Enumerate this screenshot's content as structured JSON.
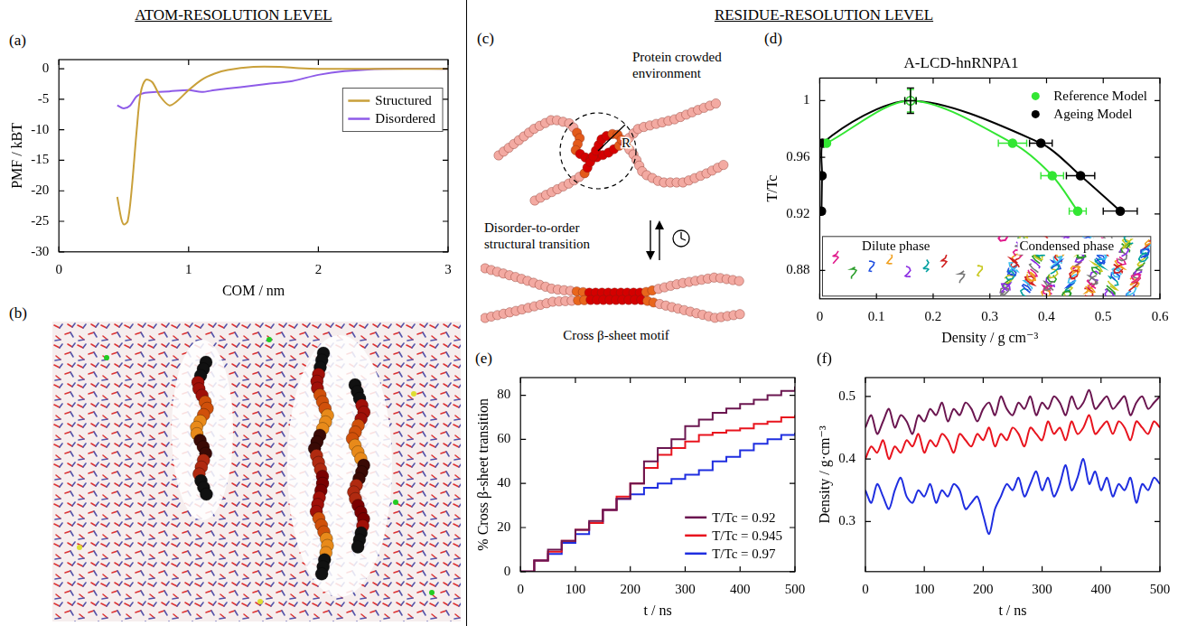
{
  "headers": {
    "left": "ATOM-RESOLUTION LEVEL",
    "right": "RESIDUE-RESOLUTION LEVEL"
  },
  "panel_b": {
    "panel": "(b)"
  },
  "diagram_c": {
    "panel": "(c)",
    "environment_label": "Protein crowded environment",
    "radius_label": "R",
    "transition_label": "Disorder-to-order structural transition",
    "motif_label": "Cross β-sheet motif"
  },
  "chart_data": [
    {
      "panel": "(a)",
      "type": "line",
      "x_label": "COM / nm",
      "y_label": "PMF / kBT",
      "xlim": [
        0,
        3
      ],
      "xticks": [
        0,
        1,
        2,
        3
      ],
      "ylim": [
        -30,
        1.5
      ],
      "yticks": [
        -30,
        -25,
        -20,
        -15,
        -10,
        -5,
        0
      ],
      "grid": false,
      "legend": "top-right",
      "series": [
        {
          "name": "Structured",
          "color": "#c9a03a",
          "line_style": "solid",
          "x": [
            0.45,
            0.48,
            0.5,
            0.53,
            0.56,
            0.6,
            0.63,
            0.67,
            0.72,
            0.78,
            0.85,
            0.9,
            1.0,
            1.1,
            1.2,
            1.3,
            1.5,
            1.7,
            1.85,
            2.0,
            2.5,
            3.0
          ],
          "values": [
            -21,
            -24.5,
            -25.5,
            -25,
            -20,
            -10,
            -4,
            -1.8,
            -2.2,
            -4.5,
            -6,
            -5.5,
            -3.5,
            -1.8,
            -0.8,
            -0.2,
            0.3,
            0.3,
            0.1,
            0,
            0,
            0
          ]
        },
        {
          "name": "Disordered",
          "color": "#8e5be8",
          "line_style": "solid",
          "x": [
            0.45,
            0.5,
            0.55,
            0.6,
            0.65,
            0.75,
            0.85,
            1.0,
            1.1,
            1.2,
            1.4,
            1.6,
            1.8,
            2.0,
            2.2,
            2.5,
            3.0
          ],
          "values": [
            -6,
            -6.5,
            -6,
            -4.5,
            -4,
            -3.8,
            -3.7,
            -3.5,
            -3.8,
            -3.5,
            -3,
            -2.5,
            -2,
            -1,
            -0.4,
            0,
            0
          ]
        }
      ]
    },
    {
      "panel": "(d)",
      "type": "line",
      "title": "A-LCD-hnRNPA1",
      "x_label": "Density / g cm⁻³",
      "y_label": "T/Tc",
      "xlim": [
        0,
        0.6
      ],
      "xticks": [
        0,
        0.1,
        0.2,
        0.3,
        0.4,
        0.5,
        0.6
      ],
      "ylim": [
        0.86,
        1.016
      ],
      "yticks": [
        0.88,
        0.92,
        0.96,
        1
      ],
      "grid": false,
      "legend": "top-right",
      "marker": "circle",
      "annotations": [
        "Dilute phase",
        "Condensed phase"
      ],
      "series": [
        {
          "name": "Reference Model",
          "color": "#33e633",
          "line_style": "solid",
          "x": [
            0.012,
            0.16,
            0.34,
            0.41,
            0.455
          ],
          "values": [
            0.97,
            1.0,
            0.97,
            0.947,
            0.922
          ],
          "x_errors": [
            0.002,
            0.01,
            0.025,
            0.02,
            0.015
          ],
          "y_errors": [
            0,
            0.008,
            0,
            0,
            0
          ]
        },
        {
          "name": "Ageing Model",
          "color": "#000000",
          "line_style": "solid",
          "x": [
            0.003,
            0.004,
            0.005,
            0.16,
            0.39,
            0.46,
            0.53
          ],
          "values": [
            0.922,
            0.947,
            0.97,
            1.0,
            0.97,
            0.947,
            0.922
          ],
          "x_errors": [
            0.001,
            0.001,
            0.001,
            0.01,
            0.02,
            0.025,
            0.03
          ],
          "y_errors": [
            0,
            0,
            0,
            0.009,
            0,
            0,
            0
          ]
        }
      ]
    },
    {
      "panel": "(e)",
      "type": "line",
      "x_label": "t / ns",
      "y_label": "% Cross β-sheet transition",
      "xlim": [
        0,
        500
      ],
      "xticks": [
        0,
        100,
        200,
        300,
        400,
        500
      ],
      "ylim": [
        0,
        88
      ],
      "yticks": [
        0,
        20,
        40,
        60,
        80
      ],
      "grid": false,
      "legend": "bottom-right",
      "x": [
        0,
        25,
        50,
        75,
        100,
        125,
        150,
        175,
        200,
        225,
        250,
        275,
        300,
        325,
        350,
        375,
        400,
        425,
        450,
        475,
        500
      ],
      "series": [
        {
          "name": "T/Tc = 0.92",
          "color": "#6b1650",
          "line_style": "steps",
          "values": [
            0,
            5,
            10,
            14,
            19,
            23,
            28,
            33,
            40,
            50,
            56,
            60,
            66,
            69,
            72,
            74,
            76,
            78,
            80,
            82,
            84
          ]
        },
        {
          "name": "T/Tc = 0.945",
          "color": "#e8141e",
          "line_style": "steps",
          "values": [
            0,
            5,
            9,
            14,
            19,
            22,
            28,
            34,
            40,
            47,
            53,
            56,
            59,
            62,
            63,
            64,
            65,
            67,
            68,
            70,
            71
          ]
        },
        {
          "name": "T/Tc = 0.97",
          "color": "#1f2ee0",
          "line_style": "steps",
          "values": [
            0,
            5,
            8,
            13,
            17,
            22,
            28,
            33,
            35,
            38,
            40,
            42,
            44,
            46,
            50,
            52,
            55,
            58,
            60,
            62,
            63
          ]
        }
      ]
    },
    {
      "panel": "(f)",
      "type": "line",
      "x_label": "t / ns",
      "y_label": "Density / g·cm⁻³",
      "xlim": [
        0,
        500
      ],
      "xticks": [
        0,
        100,
        200,
        300,
        400,
        500
      ],
      "ylim": [
        0.22,
        0.53
      ],
      "yticks": [
        0.3,
        0.4,
        0.5
      ],
      "grid": false,
      "x": [
        0,
        10,
        20,
        30,
        40,
        50,
        60,
        70,
        80,
        90,
        100,
        110,
        120,
        130,
        140,
        150,
        160,
        170,
        180,
        190,
        200,
        210,
        220,
        230,
        240,
        250,
        260,
        270,
        280,
        290,
        300,
        310,
        320,
        330,
        340,
        350,
        360,
        370,
        380,
        390,
        400,
        410,
        420,
        430,
        440,
        450,
        460,
        470,
        480,
        490,
        500
      ],
      "series": [
        {
          "name": "T/Tc = 0.92",
          "color": "#6b1650",
          "line_style": "solid",
          "values": [
            0.45,
            0.47,
            0.44,
            0.46,
            0.48,
            0.45,
            0.47,
            0.46,
            0.44,
            0.47,
            0.46,
            0.48,
            0.47,
            0.49,
            0.46,
            0.48,
            0.47,
            0.49,
            0.48,
            0.46,
            0.48,
            0.49,
            0.47,
            0.5,
            0.48,
            0.47,
            0.49,
            0.48,
            0.5,
            0.47,
            0.49,
            0.48,
            0.5,
            0.49,
            0.47,
            0.5,
            0.48,
            0.49,
            0.51,
            0.48,
            0.49,
            0.5,
            0.48,
            0.49,
            0.5,
            0.47,
            0.49,
            0.5,
            0.48,
            0.49,
            0.5
          ]
        },
        {
          "name": "T/Tc = 0.945",
          "color": "#e8141e",
          "line_style": "solid",
          "values": [
            0.4,
            0.42,
            0.41,
            0.43,
            0.4,
            0.42,
            0.41,
            0.43,
            0.42,
            0.44,
            0.41,
            0.43,
            0.42,
            0.44,
            0.43,
            0.41,
            0.44,
            0.43,
            0.42,
            0.44,
            0.43,
            0.45,
            0.42,
            0.44,
            0.43,
            0.45,
            0.44,
            0.42,
            0.45,
            0.44,
            0.43,
            0.46,
            0.44,
            0.45,
            0.43,
            0.46,
            0.44,
            0.45,
            0.47,
            0.44,
            0.45,
            0.46,
            0.44,
            0.46,
            0.45,
            0.43,
            0.46,
            0.45,
            0.44,
            0.46,
            0.45
          ]
        },
        {
          "name": "T/Tc = 0.97",
          "color": "#1f2ee0",
          "line_style": "solid",
          "values": [
            0.35,
            0.33,
            0.36,
            0.34,
            0.32,
            0.35,
            0.37,
            0.34,
            0.33,
            0.35,
            0.34,
            0.36,
            0.33,
            0.35,
            0.34,
            0.36,
            0.35,
            0.32,
            0.33,
            0.34,
            0.31,
            0.28,
            0.32,
            0.34,
            0.36,
            0.35,
            0.37,
            0.34,
            0.36,
            0.38,
            0.35,
            0.37,
            0.34,
            0.36,
            0.39,
            0.35,
            0.37,
            0.4,
            0.36,
            0.38,
            0.35,
            0.37,
            0.34,
            0.36,
            0.35,
            0.37,
            0.33,
            0.36,
            0.35,
            0.37,
            0.36
          ]
        }
      ]
    }
  ]
}
